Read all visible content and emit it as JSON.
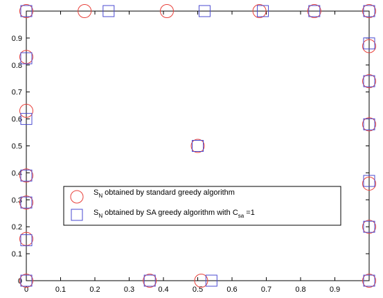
{
  "chart_data": {
    "type": "scatter",
    "title": "",
    "xlabel": "",
    "ylabel": "",
    "xlim": [
      0,
      1
    ],
    "ylim": [
      0,
      1
    ],
    "x_ticks": [
      "0",
      "0.1",
      "0.2",
      "0.3",
      "0.4",
      "0.5",
      "0.6",
      "0.7",
      "0.8",
      "0.9"
    ],
    "y_ticks": [
      "0",
      "0.1",
      "0.2",
      "0.3",
      "0.4",
      "0.5",
      "0.6",
      "0.7",
      "0.8",
      "0.9"
    ],
    "grid": false,
    "legend_position": "center-left",
    "series": [
      {
        "marker": "circle",
        "color": "#e8403a",
        "legend": {
          "prefix": "S",
          "sub": "N",
          "text": " obtained by standard greedy algorithm"
        },
        "points": [
          [
            0,
            1
          ],
          [
            0.17,
            1
          ],
          [
            0.41,
            1
          ],
          [
            0.68,
            1
          ],
          [
            0.84,
            1
          ],
          [
            1,
            1
          ],
          [
            0,
            0.83
          ],
          [
            0,
            0.63
          ],
          [
            0,
            0.39
          ],
          [
            0,
            0.29
          ],
          [
            0,
            0.155
          ],
          [
            0,
            0
          ],
          [
            0.5,
            0.5
          ],
          [
            0.36,
            0
          ],
          [
            0.51,
            0
          ],
          [
            1,
            0.87
          ],
          [
            1,
            0.74
          ],
          [
            1,
            0.58
          ],
          [
            1,
            0.36
          ],
          [
            1,
            0.2
          ],
          [
            1,
            0
          ]
        ]
      },
      {
        "marker": "square",
        "color": "#4a4ad0",
        "legend": {
          "prefix": "S",
          "sub": "N",
          "text": " obtained by SA greedy algorithm with C",
          "sub2": "sa",
          "text2": " =1"
        },
        "points": [
          [
            0,
            1
          ],
          [
            0.24,
            1
          ],
          [
            0.52,
            1
          ],
          [
            0.69,
            1
          ],
          [
            0.84,
            1
          ],
          [
            1,
            1
          ],
          [
            0,
            0.825
          ],
          [
            0,
            0.6
          ],
          [
            0,
            0.39
          ],
          [
            0,
            0.29
          ],
          [
            0,
            0.15
          ],
          [
            0,
            0
          ],
          [
            0.5,
            0.5
          ],
          [
            0.36,
            0
          ],
          [
            0.54,
            0
          ],
          [
            1,
            0.88
          ],
          [
            1,
            0.74
          ],
          [
            1,
            0.58
          ],
          [
            1,
            0.37
          ],
          [
            1,
            0.2
          ],
          [
            1,
            0
          ]
        ]
      }
    ]
  }
}
